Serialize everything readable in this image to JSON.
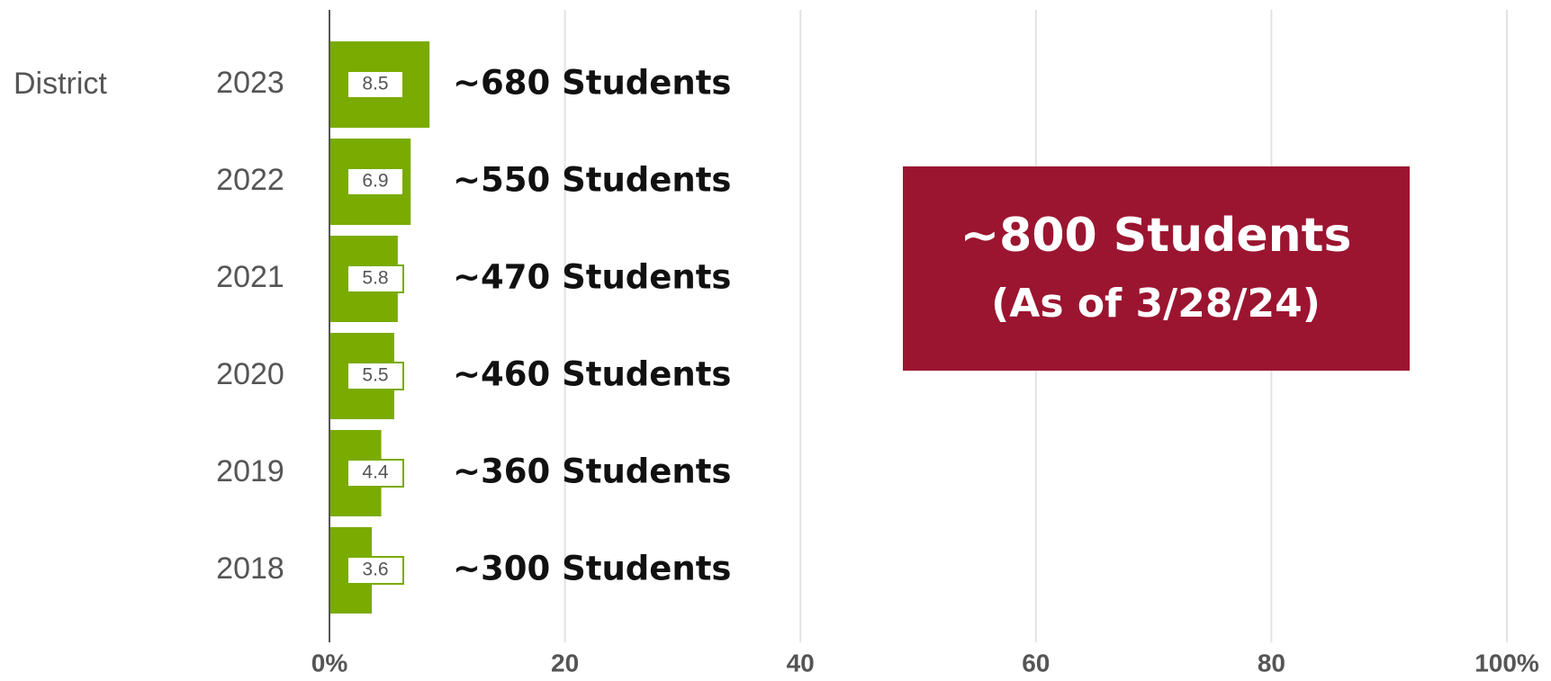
{
  "chart_data": {
    "type": "bar",
    "orientation": "horizontal",
    "group_label": "District",
    "categories": [
      "2023",
      "2022",
      "2021",
      "2020",
      "2019",
      "2018"
    ],
    "values": [
      8.5,
      6.9,
      5.8,
      5.5,
      4.4,
      3.6
    ],
    "annotations": [
      "~680 Students",
      "~550 Students",
      "~470 Students",
      "~460 Students",
      "~360 Students",
      "~300 Students"
    ],
    "color": "#7aab00",
    "xlim": [
      0,
      100
    ],
    "xticks": [
      {
        "value": 0,
        "label": "0%"
      },
      20,
      40,
      60,
      80,
      {
        "value": 100,
        "label": "100%"
      }
    ],
    "grid": true,
    "callout": {
      "title": "~800 Students",
      "subtitle": "(As of 3/28/24)",
      "color": "#9b1530"
    }
  }
}
